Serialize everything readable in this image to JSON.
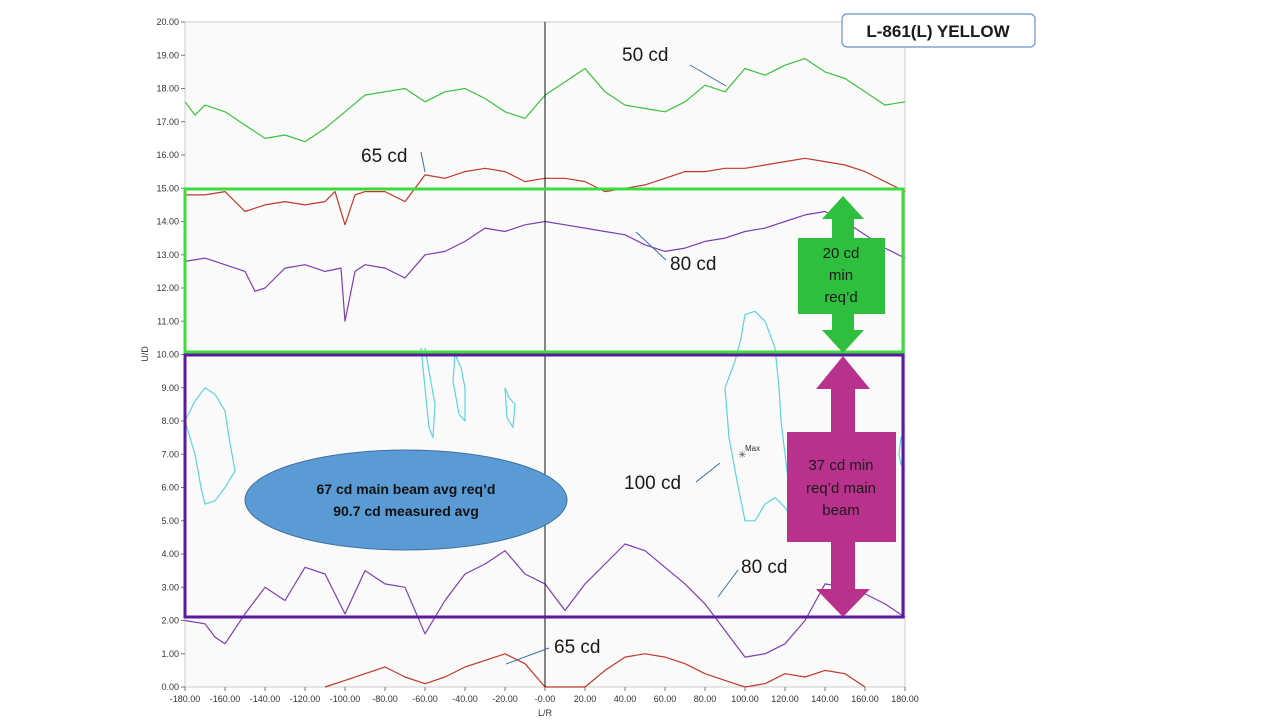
{
  "chart_data": {
    "type": "line",
    "title": "",
    "xlabel": "L/R",
    "ylabel": "U/D",
    "xlim": [
      -180,
      180
    ],
    "ylim": [
      0,
      20
    ],
    "grid": false,
    "x_ticks": [
      "-180.00",
      "-160.00",
      "-140.00",
      "-120.00",
      "-100.00",
      "-80.00",
      "-60.00",
      "-40.00",
      "-20.00",
      "-0.00",
      "20.00",
      "40.00",
      "60.00",
      "80.00",
      "100.00",
      "120.00",
      "140.00",
      "160.00",
      "180.00"
    ],
    "y_ticks": [
      "0.00",
      "1.00",
      "2.00",
      "3.00",
      "4.00",
      "5.00",
      "6.00",
      "7.00",
      "8.00",
      "9.00",
      "10.00",
      "11.00",
      "12.00",
      "13.00",
      "14.00",
      "15.00",
      "16.00",
      "17.00",
      "18.00",
      "19.00",
      "20.00"
    ],
    "series": [
      {
        "color": "#3cc23c",
        "x": [
          -180,
          -175,
          -170,
          -160,
          -150,
          -140,
          -130,
          -120,
          -110,
          -100,
          -90,
          -80,
          -70,
          -60,
          -50,
          -40,
          -30,
          -20,
          -10,
          0,
          10,
          20,
          30,
          40,
          50,
          60,
          70,
          80,
          90,
          100,
          110,
          120,
          130,
          140,
          150,
          160,
          170,
          180
        ],
        "y": [
          17.6,
          17.2,
          17.5,
          17.3,
          16.9,
          16.5,
          16.6,
          16.4,
          16.8,
          17.3,
          17.8,
          17.9,
          18.0,
          17.6,
          17.9,
          18.0,
          17.7,
          17.3,
          17.1,
          17.8,
          18.2,
          18.6,
          17.9,
          17.5,
          17.4,
          17.3,
          17.6,
          18.1,
          17.9,
          18.6,
          18.4,
          18.7,
          18.9,
          18.5,
          18.3,
          17.9,
          17.5,
          17.6
        ]
      },
      {
        "color": "#c0392b",
        "x": [
          -180,
          -170,
          -160,
          -150,
          -140,
          -130,
          -120,
          -110,
          -105,
          -100,
          -95,
          -90,
          -80,
          -70,
          -60,
          -50,
          -40,
          -30,
          -20,
          -10,
          0,
          10,
          20,
          30,
          40,
          50,
          60,
          70,
          80,
          90,
          100,
          110,
          120,
          130,
          140,
          150,
          160,
          170,
          180
        ],
        "y": [
          14.8,
          14.8,
          14.9,
          14.3,
          14.5,
          14.6,
          14.5,
          14.6,
          14.9,
          13.9,
          14.8,
          14.9,
          14.9,
          14.6,
          15.4,
          15.3,
          15.5,
          15.6,
          15.5,
          15.2,
          15.3,
          15.3,
          15.2,
          14.9,
          15.0,
          15.1,
          15.3,
          15.5,
          15.5,
          15.6,
          15.6,
          15.7,
          15.8,
          15.9,
          15.8,
          15.7,
          15.5,
          15.2,
          14.9
        ]
      },
      {
        "color": "#7b3fb3",
        "x": [
          -180,
          -170,
          -160,
          -150,
          -145,
          -140,
          -130,
          -120,
          -110,
          -102,
          -100,
          -95,
          -90,
          -80,
          -70,
          -60,
          -50,
          -40,
          -30,
          -20,
          -10,
          0,
          10,
          20,
          30,
          40,
          50,
          60,
          70,
          80,
          90,
          100,
          110,
          120,
          130,
          140,
          150,
          160,
          170,
          180
        ],
        "y": [
          12.8,
          12.9,
          12.7,
          12.5,
          11.9,
          12.0,
          12.6,
          12.7,
          12.5,
          12.6,
          11.0,
          12.5,
          12.7,
          12.6,
          12.3,
          13.0,
          13.1,
          13.4,
          13.8,
          13.7,
          13.9,
          14.0,
          13.9,
          13.8,
          13.7,
          13.6,
          13.3,
          13.1,
          13.2,
          13.4,
          13.5,
          13.7,
          13.8,
          14.0,
          14.2,
          14.3,
          14.0,
          13.6,
          13.2,
          12.9
        ]
      },
      {
        "color": "#7b3fb3",
        "x": [
          -180,
          -170,
          -165,
          -160,
          -150,
          -140,
          -130,
          -120,
          -110,
          -100,
          -90,
          -80,
          -70,
          -60,
          -50,
          -40,
          -30,
          -20,
          -10,
          0,
          10,
          20,
          30,
          40,
          50,
          60,
          70,
          80,
          90,
          100,
          110,
          120,
          130,
          140,
          150,
          160,
          170,
          180
        ],
        "y": [
          2.0,
          1.9,
          1.5,
          1.3,
          2.2,
          3.0,
          2.6,
          3.6,
          3.4,
          2.2,
          3.5,
          3.1,
          3.0,
          1.6,
          2.6,
          3.4,
          3.7,
          4.1,
          3.4,
          3.1,
          2.3,
          3.1,
          3.7,
          4.3,
          4.1,
          3.6,
          3.1,
          2.5,
          1.7,
          0.9,
          1.0,
          1.3,
          2.0,
          3.1,
          3.0,
          2.8,
          2.5,
          2.1
        ]
      },
      {
        "color": "#c0392b",
        "x": [
          -110,
          -100,
          -90,
          -80,
          -70,
          -60,
          -50,
          -40,
          -30,
          -20,
          -10,
          0,
          20,
          30,
          40,
          50,
          60,
          70,
          80,
          90,
          100,
          110,
          120,
          130,
          140,
          150,
          160
        ],
        "y": [
          0.0,
          0.2,
          0.4,
          0.6,
          0.3,
          0.1,
          0.3,
          0.6,
          0.8,
          1.0,
          0.7,
          0.0,
          0.0,
          0.5,
          0.9,
          1.0,
          0.9,
          0.7,
          0.4,
          0.2,
          0.0,
          0.1,
          0.4,
          0.3,
          0.5,
          0.4,
          0.0
        ]
      },
      {
        "color": "#5ed3e0",
        "x": [
          -180,
          -175,
          -170,
          -165,
          -160,
          -158,
          -155,
          -160,
          -165,
          -170,
          -172,
          -175,
          -180
        ],
        "y": [
          8.0,
          8.6,
          9.0,
          8.8,
          8.3,
          7.5,
          6.5,
          6.0,
          5.6,
          5.5,
          6.0,
          7.0,
          8.0
        ]
      },
      {
        "color": "#5ed3e0",
        "x": [
          90,
          95,
          98,
          100,
          105,
          110,
          115,
          117,
          118,
          120,
          122,
          125,
          124,
          120,
          115,
          110,
          105,
          100,
          96,
          92,
          90
        ],
        "y": [
          9.0,
          9.8,
          10.5,
          11.2,
          11.3,
          11.0,
          10.2,
          9.0,
          8.0,
          7.0,
          6.0,
          5.2,
          5.0,
          5.4,
          5.7,
          5.5,
          5.0,
          5.0,
          6.2,
          7.5,
          9.0
        ]
      },
      {
        "color": "#5ed3e0",
        "x": [
          -60,
          -58,
          -55,
          -56,
          -58,
          -60,
          -62
        ],
        "y": [
          10.2,
          9.5,
          8.5,
          7.5,
          7.8,
          9.0,
          10.2
        ]
      },
      {
        "color": "#5ed3e0",
        "x": [
          -45,
          -42,
          -40,
          -40,
          -43,
          -46,
          -45
        ],
        "y": [
          10.0,
          9.6,
          9.0,
          8.0,
          8.2,
          9.2,
          10.0
        ]
      },
      {
        "color": "#5ed3e0",
        "x": [
          -20,
          -18,
          -15,
          -16,
          -19,
          -20
        ],
        "y": [
          9.0,
          8.7,
          8.5,
          7.8,
          8.1,
          9.0
        ]
      },
      {
        "color": "#5ed3e0",
        "x": [
          180,
          178,
          177,
          178,
          180
        ],
        "y": [
          7.7,
          7.5,
          7.0,
          6.7,
          6.6
        ]
      }
    ],
    "max_marker": {
      "x": 100,
      "y": 7.0,
      "label": "Max"
    },
    "annotations": {
      "lbl_50": "50 cd",
      "lbl_65_top": "65 cd",
      "lbl_80_top": "80 cd",
      "lbl_100": "100 cd",
      "lbl_80_bottom": "80 cd",
      "lbl_65_bottom": "65 cd",
      "green_arrow": [
        "20 cd",
        "min",
        "req’d"
      ],
      "magenta_arrow": [
        "37 cd min",
        "req’d main",
        "beam"
      ],
      "ellipse": [
        "67 cd main beam avg req’d",
        "90.7 cd measured avg"
      ],
      "badge": "L-861(L) YELLOW"
    },
    "colors": {
      "green_box": "#3ddc3d",
      "purple_box": "#5b1a9e",
      "green_arrow": "#2fbf3f",
      "magenta_arrow": "#b8318c",
      "ellipse": "#5b9bd5",
      "badge_border": "#6d8fc9",
      "plot_background": "#fafafa"
    }
  }
}
